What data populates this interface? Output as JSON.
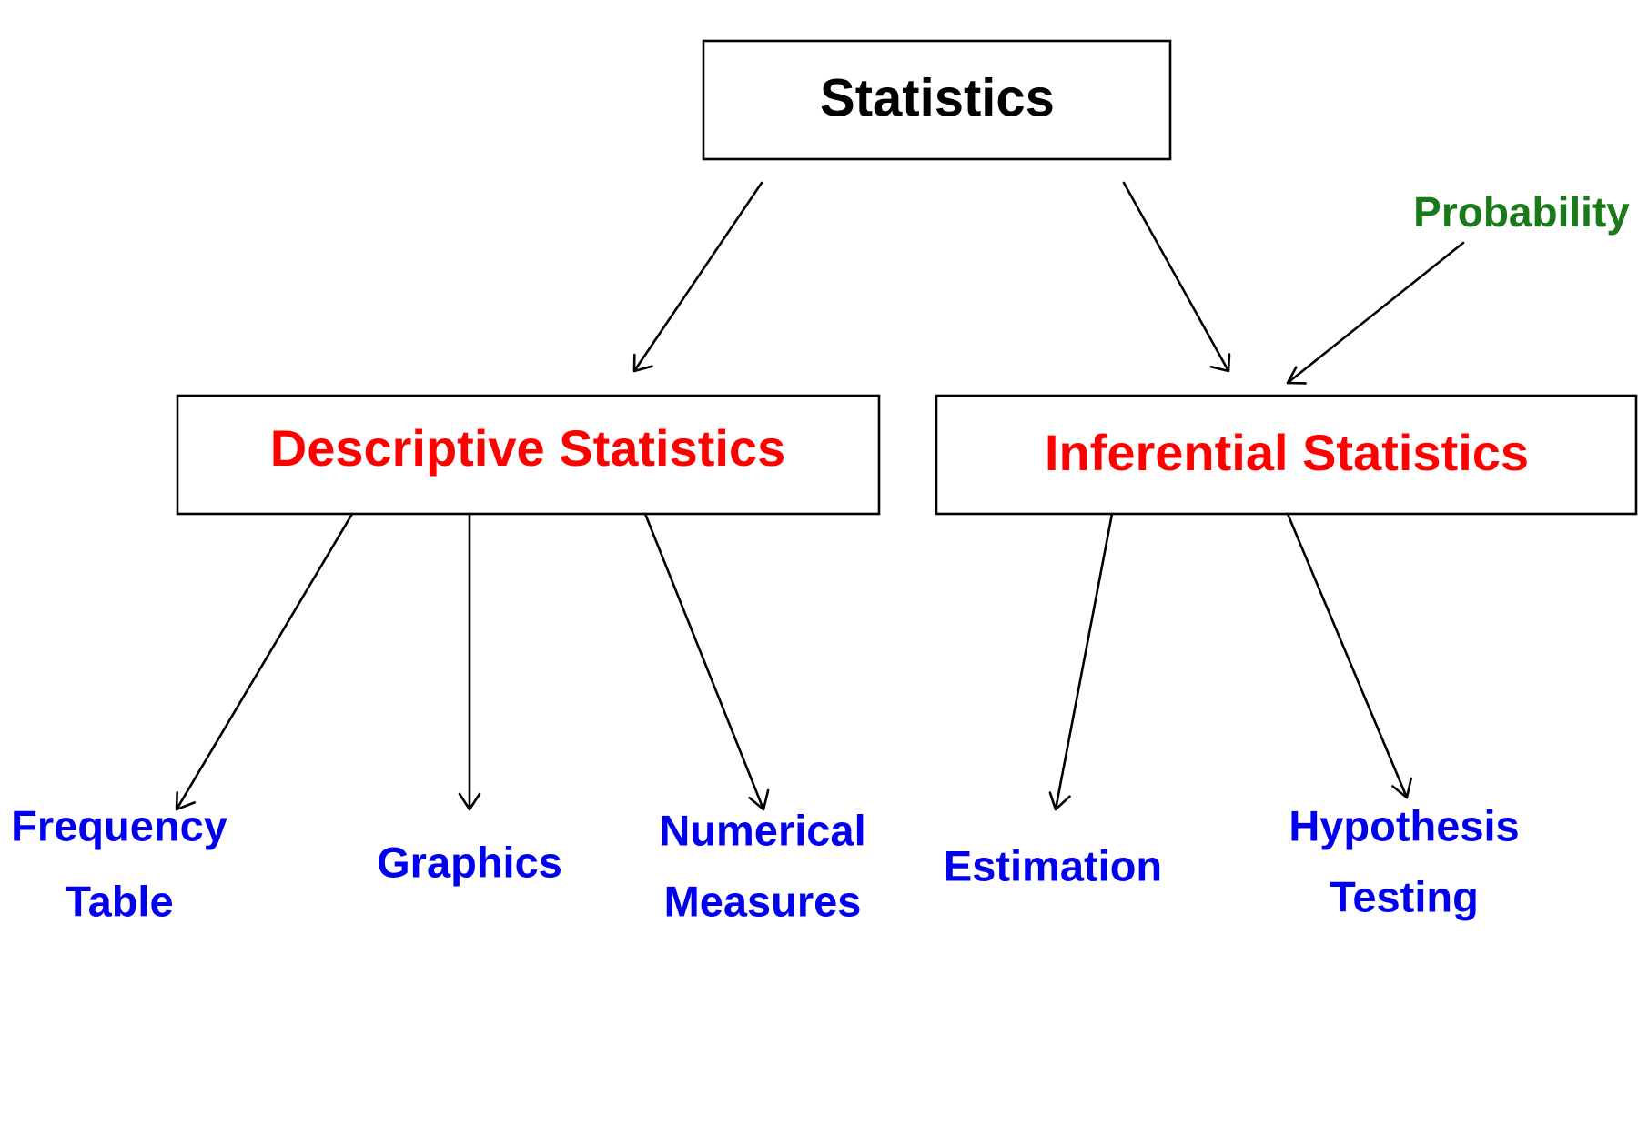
{
  "colors": {
    "root": "#000000",
    "branch": "#ff0000",
    "leaf": "#0000ee",
    "side": "#1a7a1a"
  },
  "nodes": {
    "statistics": "Statistics",
    "descriptive": "Descriptive Statistics",
    "inferential": "Inferential Statistics",
    "probability": "Probability",
    "frequency_table": [
      "Frequency",
      "Table"
    ],
    "graphics": "Graphics",
    "numerical_measures": [
      "Numerical",
      "Measures"
    ],
    "estimation": "Estimation",
    "hypothesis_testing": [
      "Hypothesis",
      "Testing"
    ]
  },
  "edges": [
    [
      "statistics",
      "descriptive"
    ],
    [
      "statistics",
      "inferential"
    ],
    [
      "probability",
      "inferential"
    ],
    [
      "descriptive",
      "frequency_table"
    ],
    [
      "descriptive",
      "graphics"
    ],
    [
      "descriptive",
      "numerical_measures"
    ],
    [
      "inferential",
      "estimation"
    ],
    [
      "inferential",
      "hypothesis_testing"
    ]
  ]
}
